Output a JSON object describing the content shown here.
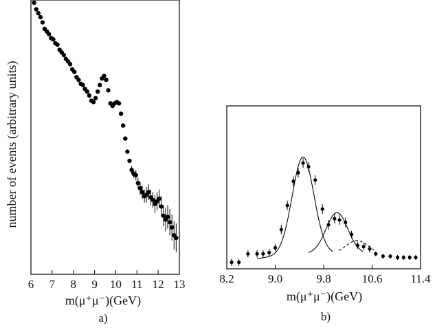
{
  "chart_data": [
    {
      "type": "scatter",
      "title": "",
      "panel_label": "a)",
      "xlabel": "m(μ⁺μ⁻)(GeV)",
      "ylabel": "number of events (arbitrary units)",
      "xlim": [
        6,
        13
      ],
      "ylim": [
        0,
        1
      ],
      "yscale": "log",
      "grid": false,
      "xticks": [
        "6",
        "7",
        "8",
        "9",
        "10",
        "11",
        "12",
        "13"
      ],
      "series": [
        {
          "points": [
            {
              "x": 6.15,
              "y": 1.0,
              "err": 0
            },
            {
              "x": 6.25,
              "y": 0.975,
              "err": 0
            },
            {
              "x": 6.35,
              "y": 0.96,
              "err": 0
            },
            {
              "x": 6.45,
              "y": 0.945,
              "err": 0
            },
            {
              "x": 6.55,
              "y": 0.925,
              "err": 0
            },
            {
              "x": 6.65,
              "y": 0.9,
              "err": 0
            },
            {
              "x": 6.75,
              "y": 0.89,
              "err": 0
            },
            {
              "x": 6.85,
              "y": 0.88,
              "err": 0
            },
            {
              "x": 6.95,
              "y": 0.865,
              "err": 0
            },
            {
              "x": 7.05,
              "y": 0.86,
              "err": 0
            },
            {
              "x": 7.15,
              "y": 0.845,
              "err": 0
            },
            {
              "x": 7.25,
              "y": 0.84,
              "err": 0
            },
            {
              "x": 7.35,
              "y": 0.82,
              "err": 0
            },
            {
              "x": 7.45,
              "y": 0.81,
              "err": 0
            },
            {
              "x": 7.55,
              "y": 0.8,
              "err": 0
            },
            {
              "x": 7.65,
              "y": 0.785,
              "err": 0
            },
            {
              "x": 7.75,
              "y": 0.775,
              "err": 0
            },
            {
              "x": 7.85,
              "y": 0.765,
              "err": 0
            },
            {
              "x": 7.95,
              "y": 0.745,
              "err": 0
            },
            {
              "x": 8.05,
              "y": 0.735,
              "err": 0
            },
            {
              "x": 8.15,
              "y": 0.715,
              "err": 0
            },
            {
              "x": 8.25,
              "y": 0.705,
              "err": 0
            },
            {
              "x": 8.35,
              "y": 0.69,
              "err": 0
            },
            {
              "x": 8.45,
              "y": 0.685,
              "err": 0
            },
            {
              "x": 8.55,
              "y": 0.67,
              "err": 0
            },
            {
              "x": 8.65,
              "y": 0.66,
              "err": 0
            },
            {
              "x": 8.75,
              "y": 0.645,
              "err": 0
            },
            {
              "x": 8.85,
              "y": 0.625,
              "err": 0
            },
            {
              "x": 8.95,
              "y": 0.62,
              "err": 0
            },
            {
              "x": 9.05,
              "y": 0.635,
              "err": 0
            },
            {
              "x": 9.15,
              "y": 0.66,
              "err": 0
            },
            {
              "x": 9.25,
              "y": 0.685,
              "err": 0
            },
            {
              "x": 9.35,
              "y": 0.71,
              "err": 0
            },
            {
              "x": 9.45,
              "y": 0.72,
              "err": 0
            },
            {
              "x": 9.55,
              "y": 0.705,
              "err": 0
            },
            {
              "x": 9.65,
              "y": 0.665,
              "err": 0
            },
            {
              "x": 9.75,
              "y": 0.615,
              "err": 0
            },
            {
              "x": 9.85,
              "y": 0.605,
              "err": 0
            },
            {
              "x": 9.95,
              "y": 0.615,
              "err": 0
            },
            {
              "x": 10.05,
              "y": 0.62,
              "err": 0
            },
            {
              "x": 10.15,
              "y": 0.615,
              "err": 0
            },
            {
              "x": 10.25,
              "y": 0.575,
              "err": 0
            },
            {
              "x": 10.35,
              "y": 0.53,
              "err": 0
            },
            {
              "x": 10.45,
              "y": 0.48,
              "err": 0
            },
            {
              "x": 10.55,
              "y": 0.43,
              "err": 0
            },
            {
              "x": 10.65,
              "y": 0.395,
              "err": 0
            },
            {
              "x": 10.75,
              "y": 0.36,
              "err": 0.015
            },
            {
              "x": 10.85,
              "y": 0.345,
              "err": 0.015
            },
            {
              "x": 10.95,
              "y": 0.34,
              "err": 0.02
            },
            {
              "x": 11.05,
              "y": 0.31,
              "err": 0.02
            },
            {
              "x": 11.15,
              "y": 0.29,
              "err": 0.025
            },
            {
              "x": 11.25,
              "y": 0.275,
              "err": 0.025
            },
            {
              "x": 11.35,
              "y": 0.26,
              "err": 0.025
            },
            {
              "x": 11.45,
              "y": 0.265,
              "err": 0.03
            },
            {
              "x": 11.55,
              "y": 0.275,
              "err": 0.03
            },
            {
              "x": 11.65,
              "y": 0.255,
              "err": 0.03
            },
            {
              "x": 11.75,
              "y": 0.245,
              "err": 0.03
            },
            {
              "x": 11.85,
              "y": 0.23,
              "err": 0.035
            },
            {
              "x": 11.95,
              "y": 0.24,
              "err": 0.035
            },
            {
              "x": 12.05,
              "y": 0.25,
              "err": 0.035
            },
            {
              "x": 12.15,
              "y": 0.22,
              "err": 0.04
            },
            {
              "x": 12.25,
              "y": 0.185,
              "err": 0.04
            },
            {
              "x": 12.35,
              "y": 0.17,
              "err": 0.045
            },
            {
              "x": 12.45,
              "y": 0.18,
              "err": 0.045
            },
            {
              "x": 12.55,
              "y": 0.16,
              "err": 0.05
            },
            {
              "x": 12.65,
              "y": 0.14,
              "err": 0.05
            },
            {
              "x": 12.75,
              "y": 0.11,
              "err": 0.055
            },
            {
              "x": 12.85,
              "y": 0.1,
              "err": 0.055
            }
          ]
        }
      ]
    },
    {
      "type": "scatter",
      "title": "",
      "panel_label": "b)",
      "xlabel": "m(μ⁺μ⁻)(GeV)",
      "ylabel": "",
      "xlim": [
        8.2,
        11.4
      ],
      "ylim": [
        0,
        1
      ],
      "grid": false,
      "xticks": [
        "8.2",
        "9.0",
        "9.8",
        "10.6",
        "11.4"
      ],
      "peaks": [
        {
          "center": 9.46,
          "amplitude": 0.8,
          "sigma": 0.18
        },
        {
          "center": 10.02,
          "amplitude": 0.34,
          "sigma": 0.18
        },
        {
          "center": 10.35,
          "amplitude": 0.11,
          "sigma": 0.18
        }
      ],
      "background": {
        "level": 0.05,
        "fall_start": 9.4,
        "fall_end": 8.5
      },
      "series": [
        {
          "points": [
            {
              "x": 8.28,
              "y": -0.02,
              "err": 0.03
            },
            {
              "x": 8.4,
              "y": -0.02,
              "err": 0.03
            },
            {
              "x": 8.55,
              "y": 0.05,
              "err": 0.03
            },
            {
              "x": 8.7,
              "y": 0.05,
              "err": 0.03
            },
            {
              "x": 8.8,
              "y": 0.05,
              "err": 0.03
            },
            {
              "x": 8.9,
              "y": 0.06,
              "err": 0.03
            },
            {
              "x": 9.0,
              "y": 0.1,
              "err": 0.03
            },
            {
              "x": 9.1,
              "y": 0.25,
              "err": 0.04
            },
            {
              "x": 9.2,
              "y": 0.45,
              "err": 0.04
            },
            {
              "x": 9.3,
              "y": 0.65,
              "err": 0.04
            },
            {
              "x": 9.38,
              "y": 0.72,
              "err": 0.04
            },
            {
              "x": 9.46,
              "y": 0.8,
              "err": 0.04
            },
            {
              "x": 9.55,
              "y": 0.77,
              "err": 0.04
            },
            {
              "x": 9.66,
              "y": 0.66,
              "err": 0.04
            },
            {
              "x": 9.78,
              "y": 0.42,
              "err": 0.04
            },
            {
              "x": 9.88,
              "y": 0.29,
              "err": 0.04
            },
            {
              "x": 9.98,
              "y": 0.34,
              "err": 0.04
            },
            {
              "x": 10.06,
              "y": 0.33,
              "err": 0.04
            },
            {
              "x": 10.16,
              "y": 0.31,
              "err": 0.04
            },
            {
              "x": 10.26,
              "y": 0.21,
              "err": 0.03
            },
            {
              "x": 10.36,
              "y": 0.12,
              "err": 0.03
            },
            {
              "x": 10.46,
              "y": 0.11,
              "err": 0.03
            },
            {
              "x": 10.56,
              "y": 0.09,
              "err": 0.03
            },
            {
              "x": 10.66,
              "y": 0.05,
              "err": 0.02
            },
            {
              "x": 10.78,
              "y": 0.03,
              "err": 0.02
            },
            {
              "x": 10.9,
              "y": 0.03,
              "err": 0.02
            },
            {
              "x": 11.02,
              "y": 0.02,
              "err": 0.02
            },
            {
              "x": 11.12,
              "y": 0.02,
              "err": 0.02
            },
            {
              "x": 11.22,
              "y": 0.02,
              "err": 0.02
            },
            {
              "x": 11.32,
              "y": 0.02,
              "err": 0.02
            }
          ]
        }
      ]
    }
  ]
}
